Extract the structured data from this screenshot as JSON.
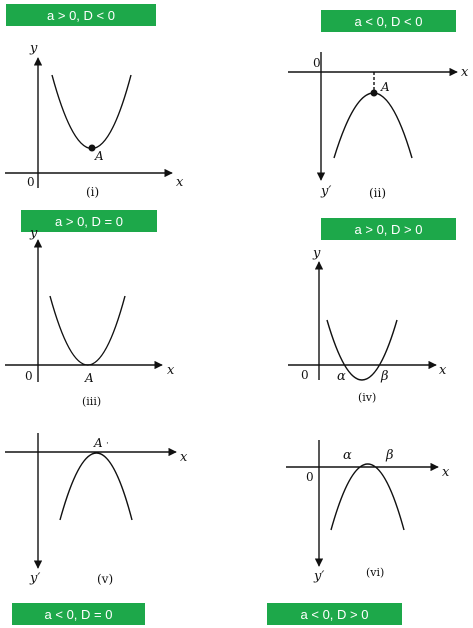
{
  "badges": [
    "a > 0, D < 0",
    "a < 0, D < 0",
    "a > 0, D = 0",
    "a > 0, D > 0",
    "a < 0, D = 0",
    "a < 0, D > 0"
  ],
  "panels": {
    "p1": {
      "caption": "(i)",
      "x_label": "x",
      "y_label": "y",
      "origin": "0",
      "point": "A"
    },
    "p2": {
      "caption": "(ii)",
      "x_label": "x",
      "y_label": "y′",
      "origin": "0",
      "point": "A"
    },
    "p3": {
      "caption": "(iii)",
      "x_label": "x",
      "y_label": "y",
      "origin": "0",
      "point": "A"
    },
    "p4": {
      "caption": "(iv)",
      "x_label": "x",
      "y_label": "y",
      "origin": "0",
      "root1": "α",
      "root2": "β"
    },
    "p5": {
      "caption": "(v)",
      "x_label": "x",
      "y_label": "y′",
      "point": "A"
    },
    "p6": {
      "caption": "(vi)",
      "x_label": "x",
      "y_label": "y′",
      "origin": "0",
      "root1": "α",
      "root2": "β"
    }
  },
  "colors": {
    "badge_bg": "#1da84a",
    "badge_text": "#ffffff",
    "ink": "#111111"
  }
}
